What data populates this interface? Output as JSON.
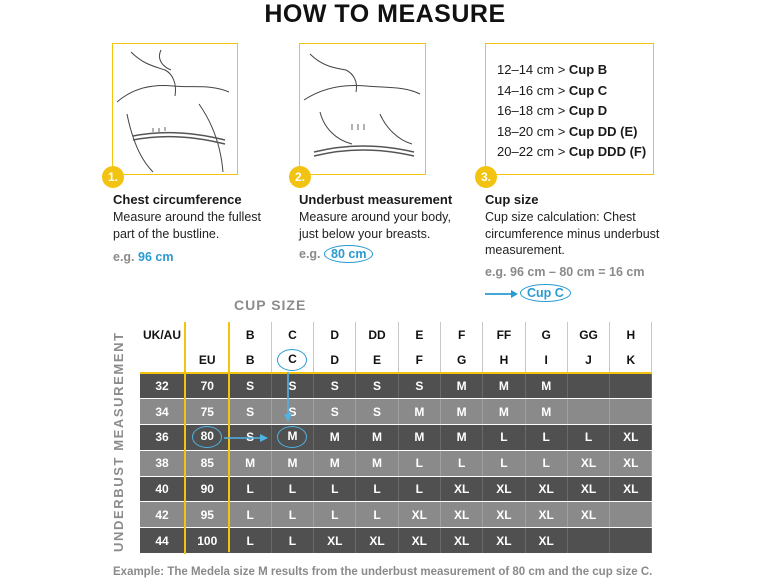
{
  "title": "HOW TO MEASURE",
  "steps": [
    {
      "number": "1.",
      "title": "Chest circumference",
      "desc_lines": [
        "Measure around the fullest",
        "part of the bustline."
      ],
      "eg_prefix": "e.g. ",
      "eg_value": "96 cm"
    },
    {
      "number": "2.",
      "title": "Underbust measurement",
      "desc_lines": [
        "Measure around your body,",
        "just below your breasts."
      ],
      "eg_prefix": "e.g. ",
      "eg_value": "80 cm"
    },
    {
      "number": "3.",
      "title": "Cup size",
      "desc_lines": [
        "Cup size calculation: Chest",
        "circumference minus underbust",
        "measurement."
      ],
      "eg_text": "e.g. 96 cm – 80 cm = 16 cm",
      "result": "Cup C"
    }
  ],
  "cup_rules": [
    {
      "range": "12–14 cm > ",
      "cup": "Cup B"
    },
    {
      "range": "14–16 cm > ",
      "cup": "Cup C"
    },
    {
      "range": "16–18 cm > ",
      "cup": "Cup D"
    },
    {
      "range": "18–20 cm > ",
      "cup": "Cup DD (E)"
    },
    {
      "range": "20–22 cm > ",
      "cup": "Cup DDD (F)"
    }
  ],
  "table": {
    "cup_size_label": "CUP SIZE",
    "underbust_label": "UNDERBUST MEASUREMENT",
    "header_ukau": [
      "UK/AU",
      "",
      "B",
      "C",
      "D",
      "DD",
      "E",
      "F",
      "FF",
      "G",
      "GG",
      "H"
    ],
    "header_eu": [
      "",
      "EU",
      "B",
      "C",
      "D",
      "E",
      "F",
      "G",
      "H",
      "I",
      "J",
      "K"
    ],
    "rows": [
      [
        "32",
        "70",
        "S",
        "S",
        "S",
        "S",
        "S",
        "M",
        "M",
        "M",
        "",
        ""
      ],
      [
        "34",
        "75",
        "S",
        "S",
        "S",
        "S",
        "M",
        "M",
        "M",
        "M",
        "",
        ""
      ],
      [
        "36",
        "80",
        "S",
        "M",
        "M",
        "M",
        "M",
        "M",
        "L",
        "L",
        "L",
        "XL"
      ],
      [
        "38",
        "85",
        "M",
        "M",
        "M",
        "M",
        "L",
        "L",
        "L",
        "L",
        "XL",
        "XL"
      ],
      [
        "40",
        "90",
        "L",
        "L",
        "L",
        "L",
        "L",
        "XL",
        "XL",
        "XL",
        "XL",
        "XL"
      ],
      [
        "42",
        "95",
        "L",
        "L",
        "L",
        "L",
        "XL",
        "XL",
        "XL",
        "XL",
        "XL",
        ""
      ],
      [
        "44",
        "100",
        "L",
        "L",
        "XL",
        "XL",
        "XL",
        "XL",
        "XL",
        "XL",
        "",
        ""
      ]
    ]
  },
  "example": "Example: The Medela size M results from the underbust measurement of 80 cm and the cup size C.",
  "colors": {
    "accent_yellow": "#f2c311",
    "accent_blue": "#2a9bd0",
    "dark_row": "#505050",
    "light_row": "#8a8a8a"
  }
}
